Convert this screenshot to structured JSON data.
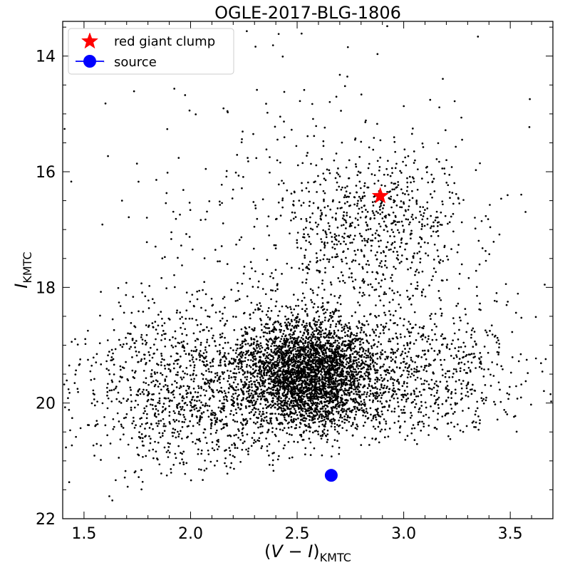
{
  "chart_data": {
    "type": "scatter",
    "title": "OGLE-2017-BLG-1806",
    "xlabel": "(V − I)KMTC",
    "ylabel": "IKMTC",
    "xlim": [
      1.4,
      3.7
    ],
    "ylim": [
      22,
      13.4
    ],
    "y_axis_inverted": true,
    "grid": false,
    "legend_position": "top-left",
    "xticks": [
      "1.5",
      "2.0",
      "2.5",
      "3.0",
      "3.5"
    ],
    "yticks": [
      "14",
      "16",
      "18",
      "20",
      "22"
    ],
    "series": [
      {
        "name": "red giant clump",
        "marker": "star",
        "color": "#ff0000",
        "points": [
          {
            "x": 2.89,
            "y": 16.42
          }
        ]
      },
      {
        "name": "source",
        "marker": "circle",
        "color": "#0000ff",
        "points": [
          {
            "x": 2.66,
            "y": 21.25
          }
        ]
      }
    ],
    "background_stars": {
      "color": "#000000",
      "count": 6500,
      "groups": [
        {
          "x_center": 2.55,
          "y_center": 19.5,
          "x_sd": 0.16,
          "y_sd": 0.45,
          "fraction": 0.5
        },
        {
          "x_center": 2.05,
          "y_center": 19.8,
          "x_sd": 0.3,
          "y_sd": 0.8,
          "fraction": 0.2
        },
        {
          "x_center": 3.05,
          "y_center": 19.6,
          "x_sd": 0.28,
          "y_sd": 0.6,
          "fraction": 0.12
        },
        {
          "x_center": 2.85,
          "y_center": 17.0,
          "x_sd": 0.22,
          "y_sd": 0.7,
          "fraction": 0.1
        },
        {
          "x_center": 2.55,
          "y_center": 17.6,
          "x_sd": 0.5,
          "y_sd": 1.8,
          "fraction": 0.08
        }
      ],
      "lower_envelope": [
        {
          "x": 1.4,
          "y": 21.9
        },
        {
          "x": 2.0,
          "y": 21.2
        },
        {
          "x": 2.5,
          "y": 20.9
        },
        {
          "x": 3.0,
          "y": 20.5
        },
        {
          "x": 3.7,
          "y": 20.3
        }
      ]
    }
  }
}
